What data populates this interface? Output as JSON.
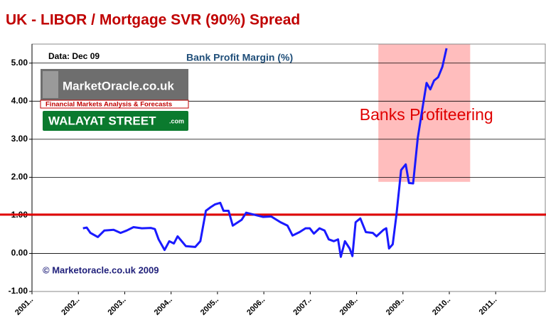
{
  "chart_data": {
    "type": "line",
    "title": "UK  - LIBOR / Mortgage SVR (90%) Spread",
    "subtitle": "Bank Profit Margin (%)",
    "data_note": "Data: Dec  09",
    "copyright": "© Marketoracle.co.uk  2009",
    "logo": {
      "site": "MarketOracle.co.uk",
      "tagline": "Financial Markets Analysis & Forecasts",
      "sign": "WALAYAT STREET",
      "sign_suffix": ".com"
    },
    "xlim": [
      2001,
      2012.07
    ],
    "ylim": [
      -1,
      5.5
    ],
    "xticks": [
      {
        "value": 2001,
        "label": "2001.."
      },
      {
        "value": 2002,
        "label": "2002.."
      },
      {
        "value": 2003,
        "label": "2003.."
      },
      {
        "value": 2004,
        "label": "2004.."
      },
      {
        "value": 2005,
        "label": "2005.."
      },
      {
        "value": 2006,
        "label": "2006.."
      },
      {
        "value": 2007,
        "label": "2007.."
      },
      {
        "value": 2008,
        "label": "2008.."
      },
      {
        "value": 2009,
        "label": "2009.."
      },
      {
        "value": 2010,
        "label": "2010.."
      },
      {
        "value": 2011,
        "label": "2011.."
      }
    ],
    "yticks": [
      {
        "value": -1,
        "label": "-1.00"
      },
      {
        "value": 0,
        "label": "0.00"
      },
      {
        "value": 1,
        "label": "1.00"
      },
      {
        "value": 2,
        "label": "2.00"
      },
      {
        "value": 3,
        "label": "3.00"
      },
      {
        "value": 4,
        "label": "4.00"
      },
      {
        "value": 5,
        "label": "5.00"
      }
    ],
    "grid": true,
    "reference_line": {
      "value": 1.02,
      "color": "#e00000"
    },
    "highlight": {
      "x": [
        2008.47,
        2010.45
      ],
      "y": [
        1.88,
        5.5
      ],
      "color": "#ffbdbd",
      "label": "Banks Profiteering",
      "label_color": "#e00000"
    },
    "series": [
      {
        "color": "#1a1aff",
        "x": [
          2002.1,
          2002.18,
          2002.26,
          2002.42,
          2002.56,
          2002.76,
          2002.91,
          2003.04,
          2003.19,
          2003.37,
          2003.56,
          2003.65,
          2003.73,
          2003.86,
          2003.96,
          2004.06,
          2004.14,
          2004.32,
          2004.52,
          2004.63,
          2004.75,
          2004.86,
          2004.95,
          2005.06,
          2005.13,
          2005.24,
          2005.33,
          2005.52,
          2005.62,
          2005.75,
          2005.98,
          2006.16,
          2006.36,
          2006.51,
          2006.62,
          2006.77,
          2006.9,
          2006.99,
          2007.08,
          2007.2,
          2007.31,
          2007.4,
          2007.51,
          2007.6,
          2007.66,
          2007.75,
          2007.85,
          2007.91,
          2007.98,
          2008.08,
          2008.2,
          2008.35,
          2008.43,
          2008.58,
          2008.64,
          2008.7,
          2008.78,
          2008.86,
          2008.96,
          2009.06,
          2009.13,
          2009.22,
          2009.32,
          2009.41,
          2009.51,
          2009.59,
          2009.67,
          2009.76,
          2009.85,
          2009.94
        ],
        "values": [
          0.66,
          0.68,
          0.54,
          0.43,
          0.6,
          0.62,
          0.54,
          0.6,
          0.69,
          0.66,
          0.67,
          0.64,
          0.37,
          0.09,
          0.32,
          0.26,
          0.45,
          0.19,
          0.17,
          0.32,
          1.12,
          1.22,
          1.29,
          1.33,
          1.12,
          1.12,
          0.73,
          0.88,
          1.07,
          1.03,
          0.96,
          0.97,
          0.82,
          0.73,
          0.47,
          0.56,
          0.66,
          0.66,
          0.52,
          0.66,
          0.6,
          0.37,
          0.32,
          0.37,
          -0.09,
          0.32,
          0.13,
          -0.07,
          0.82,
          0.92,
          0.56,
          0.54,
          0.45,
          0.62,
          0.66,
          0.13,
          0.24,
          1.01,
          2.19,
          2.34,
          1.85,
          1.84,
          3.03,
          3.73,
          4.48,
          4.31,
          4.54,
          4.63,
          4.9,
          5.39
        ]
      }
    ]
  }
}
